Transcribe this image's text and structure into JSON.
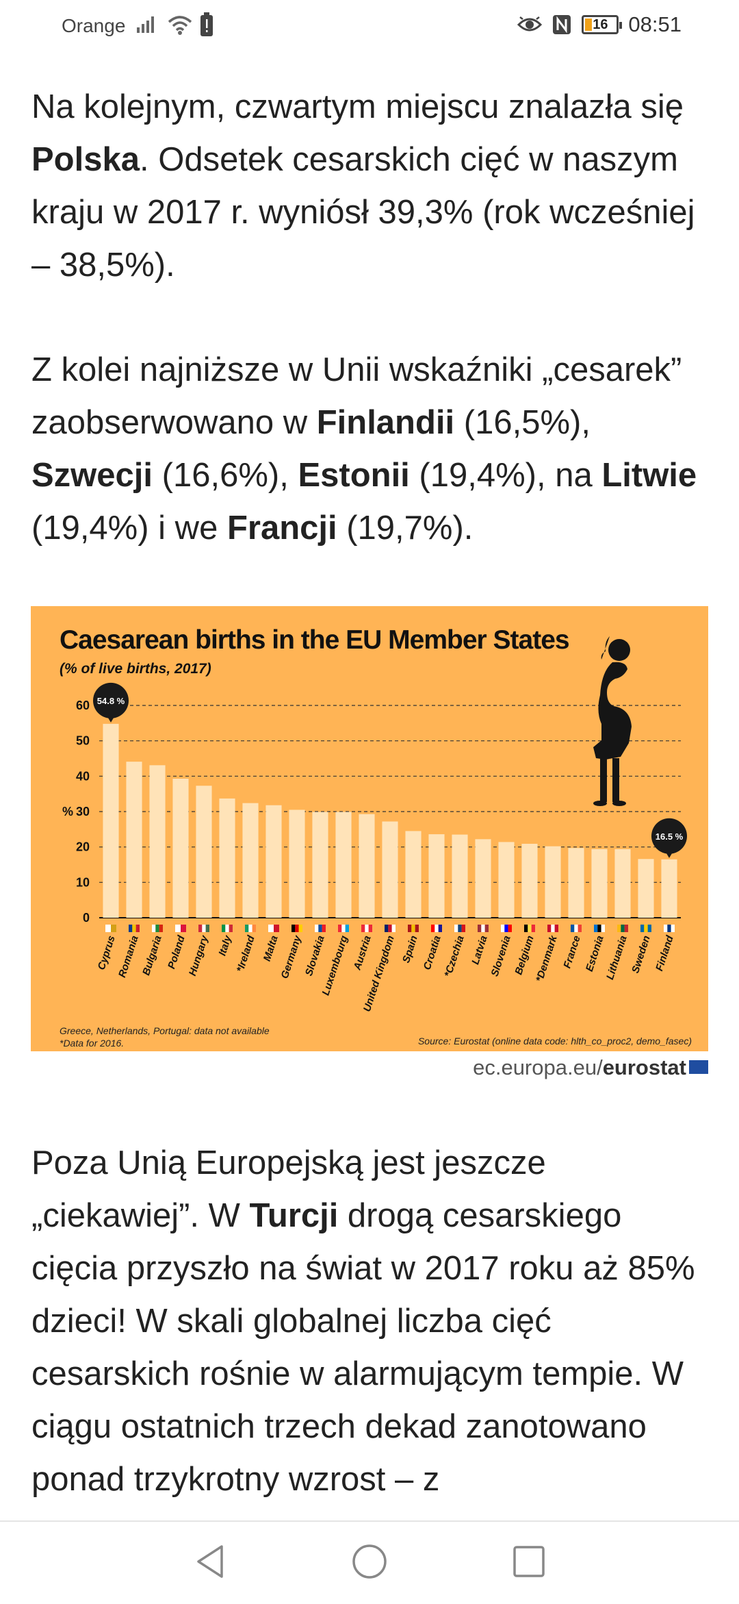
{
  "status_bar": {
    "carrier": "Orange",
    "time": "08:51",
    "battery_level": "16"
  },
  "article": {
    "p1": {
      "t1": "Na kolejnym, czwartym miejscu znalazła się ",
      "b1": "Polska",
      "t2": ". Odsetek cesarskich cięć w naszym kraju w 2017 r. wyniósł 39,3% (rok wcześniej – 38,5%)."
    },
    "p2": {
      "t1": "Z kolei najniższe w Unii wskaźniki „cesarek” zaobserwowano w ",
      "b1": "Finlandii",
      "t2": " (16,5%), ",
      "b2": "Szwecji",
      "t3": " (16,6%), ",
      "b3": "Estonii",
      "t4": " (19,4%), na ",
      "b4": "Litwie",
      "t5": " (19,4%) i we ",
      "b5": "Francji",
      "t6": " (19,7%)."
    },
    "p3": {
      "t1": "Poza Unią Europejską jest jeszcze „ciekawiej”. W ",
      "b1": "Turcji",
      "t2": " drogą cesarskiego cięcia przyszło na świat w 2017 roku aż 85% dzieci! W skali globalnej liczba cięć cesarskich rośnie w alarmującym tempie. W ciągu ostatnich trzech dekad zanotowano ponad trzykrotny wzrost – z"
    }
  },
  "infographic": {
    "note1": "Greece, Netherlands, Portugal: data not available",
    "note2": "*Data for 2016.",
    "source": "Source: Eurostat (online data code: hlth_co_proc2, demo_fasec)",
    "credit_domain": "ec.europa.eu/",
    "credit_brand": "eurostat",
    "background_color": "#ffb455",
    "bar_color": "#ffe3b8"
  },
  "chart_data": {
    "type": "bar",
    "title": "Caesarean births in the EU  Member States",
    "subtitle": "(% of live births, 2017)",
    "ylabel": "%",
    "ylim": [
      0,
      65
    ],
    "yticks": [
      0,
      10,
      20,
      30,
      40,
      50,
      60
    ],
    "grid": true,
    "categories": [
      "Cyprus",
      "Romania",
      "Bulgaria",
      "Poland",
      "Hungary",
      "Italy",
      "*Ireland",
      "Malta",
      "Germany",
      "Slovakia",
      "Luxembourg",
      "Austria",
      "United Kingdom",
      "Spain",
      "Croatia",
      "*Czechia",
      "Latvia",
      "Slovenia",
      "Belgium",
      "*Denmark",
      "France",
      "Estonia",
      "Lithuania",
      "Sweden",
      "Finland"
    ],
    "values": [
      54.8,
      44.1,
      43.1,
      39.3,
      37.3,
      33.7,
      32.4,
      31.8,
      30.5,
      29.9,
      29.9,
      29.3,
      27.2,
      24.5,
      23.6,
      23.5,
      22.2,
      21.4,
      20.9,
      20.2,
      19.7,
      19.4,
      19.4,
      16.6,
      16.5
    ],
    "annotations": [
      {
        "category": "Cyprus",
        "label": "54.8 %"
      },
      {
        "category": "Finland",
        "label": "16.5 %"
      }
    ]
  }
}
